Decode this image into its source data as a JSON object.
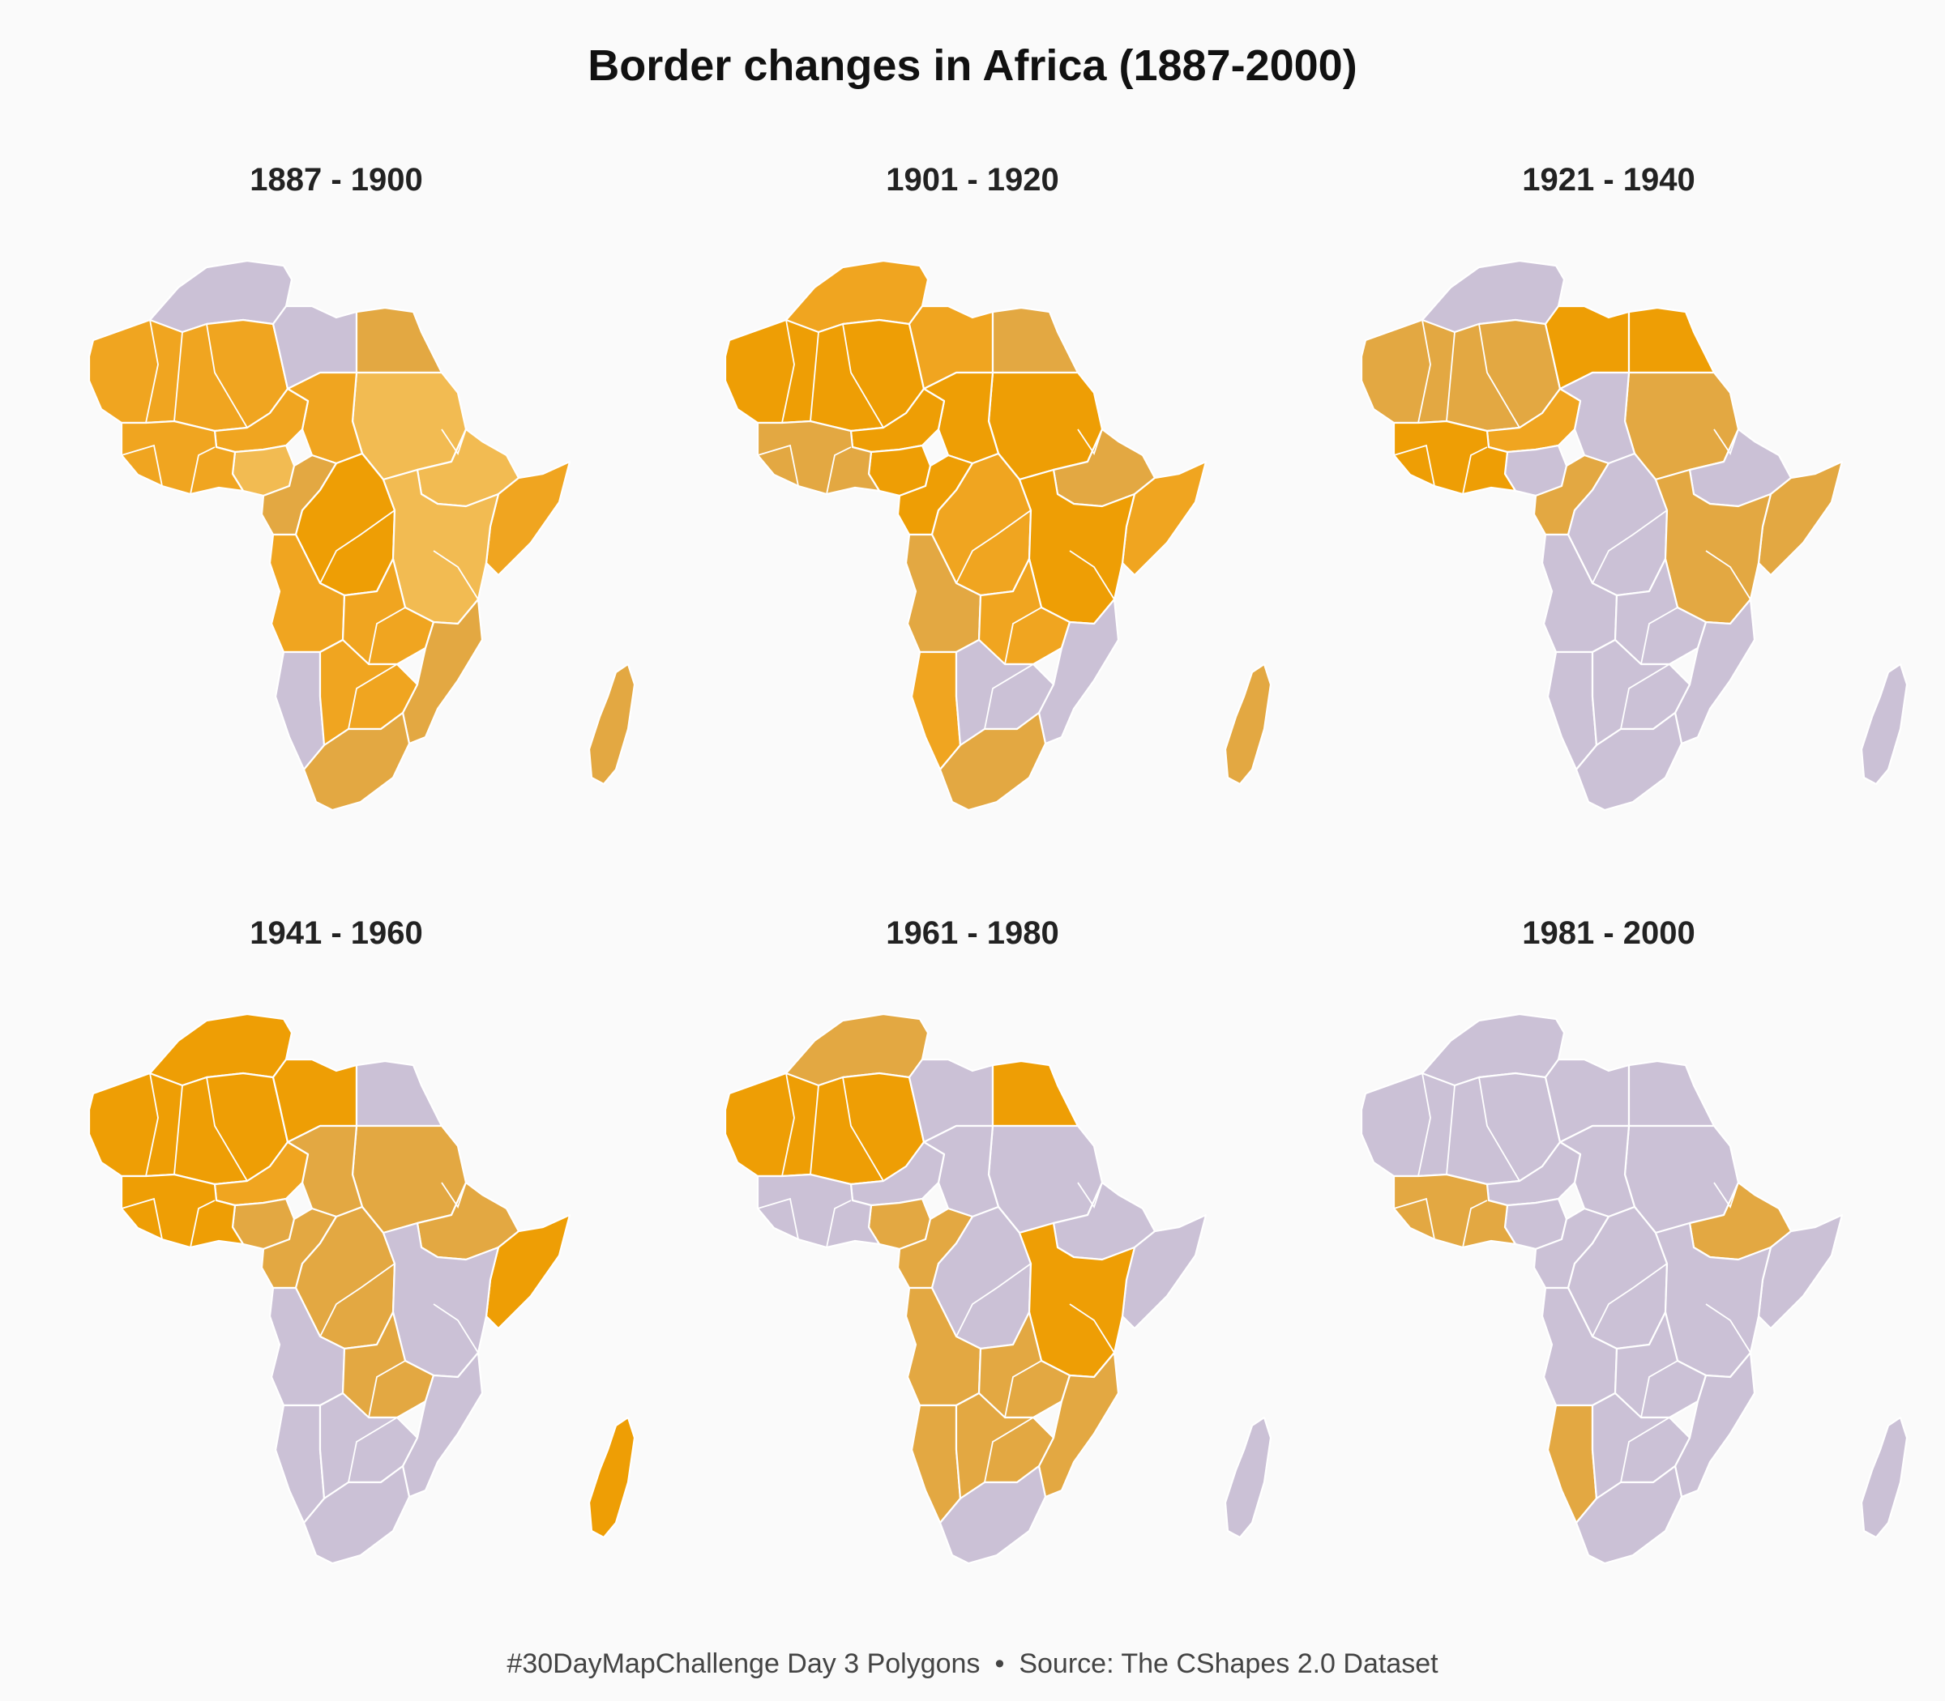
{
  "title": "Border changes in Africa (1887-2000)",
  "caption": {
    "challenge": "#30DayMapChallenge Day 3 Polygons",
    "separator": "•",
    "source": "Source: The CShapes 2.0 Dataset"
  },
  "colors": {
    "background": "#fafafa",
    "unchanged": "#cbc1d6",
    "changed_dark": "#ee9e05",
    "changed_mid": "#f0a520",
    "changed_light": "#f2bb52",
    "changed_muted": "#e3a842",
    "border": "#ffffff"
  },
  "panels": [
    {
      "label": "1887 - 1900",
      "regions": {
        "maghreb": "unchanged",
        "sahara_west": "changed_mid",
        "libya": "unchanged",
        "egypt": "changed_muted",
        "sudan": "changed_light",
        "chad": "changed_mid",
        "niger": "changed_mid",
        "nigeria": "changed_light",
        "guinea_coast": "changed_mid",
        "horn": "changed_light",
        "somalia": "changed_mid",
        "cameroon": "changed_muted",
        "congo": "changed_dark",
        "east_africa": "changed_light",
        "angola": "changed_mid",
        "zambia": "changed_mid",
        "mozambique": "changed_muted",
        "namibia": "unchanged",
        "botswana": "changed_mid",
        "south_africa": "changed_muted",
        "madagascar": "changed_muted"
      }
    },
    {
      "label": "1901 - 1920",
      "regions": {
        "maghreb": "changed_mid",
        "sahara_west": "changed_dark",
        "libya": "changed_mid",
        "egypt": "changed_muted",
        "sudan": "changed_dark",
        "chad": "changed_dark",
        "niger": "changed_dark",
        "nigeria": "changed_dark",
        "guinea_coast": "changed_muted",
        "horn": "changed_muted",
        "somalia": "changed_mid",
        "cameroon": "changed_dark",
        "congo": "changed_mid",
        "east_africa": "changed_dark",
        "angola": "changed_muted",
        "zambia": "changed_mid",
        "mozambique": "unchanged",
        "namibia": "changed_mid",
        "botswana": "unchanged",
        "south_africa": "changed_muted",
        "madagascar": "changed_muted"
      }
    },
    {
      "label": "1921 - 1940",
      "regions": {
        "maghreb": "unchanged",
        "sahara_west": "changed_muted",
        "libya": "changed_dark",
        "egypt": "changed_dark",
        "sudan": "changed_muted",
        "chad": "unchanged",
        "niger": "changed_mid",
        "nigeria": "unchanged",
        "guinea_coast": "changed_dark",
        "horn": "unchanged",
        "somalia": "changed_muted",
        "cameroon": "changed_muted",
        "congo": "unchanged",
        "east_africa": "changed_muted",
        "angola": "unchanged",
        "zambia": "unchanged",
        "mozambique": "unchanged",
        "namibia": "unchanged",
        "botswana": "unchanged",
        "south_africa": "unchanged",
        "madagascar": "unchanged"
      }
    },
    {
      "label": "1941 - 1960",
      "regions": {
        "maghreb": "changed_dark",
        "sahara_west": "changed_dark",
        "libya": "changed_dark",
        "egypt": "unchanged",
        "sudan": "changed_muted",
        "chad": "changed_muted",
        "niger": "changed_mid",
        "nigeria": "changed_muted",
        "guinea_coast": "changed_dark",
        "horn": "changed_muted",
        "somalia": "changed_dark",
        "cameroon": "changed_muted",
        "congo": "changed_muted",
        "east_africa": "unchanged",
        "angola": "unchanged",
        "zambia": "changed_muted",
        "mozambique": "unchanged",
        "namibia": "unchanged",
        "botswana": "unchanged",
        "south_africa": "unchanged",
        "madagascar": "changed_dark"
      }
    },
    {
      "label": "1961 - 1980",
      "regions": {
        "maghreb": "changed_muted",
        "sahara_west": "changed_dark",
        "libya": "unchanged",
        "egypt": "changed_dark",
        "sudan": "unchanged",
        "chad": "unchanged",
        "niger": "unchanged",
        "nigeria": "changed_muted",
        "guinea_coast": "unchanged",
        "horn": "unchanged",
        "somalia": "unchanged",
        "cameroon": "changed_muted",
        "congo": "unchanged",
        "east_africa": "changed_dark",
        "angola": "changed_muted",
        "zambia": "changed_muted",
        "mozambique": "changed_muted",
        "namibia": "changed_muted",
        "botswana": "changed_muted",
        "south_africa": "unchanged",
        "madagascar": "unchanged"
      }
    },
    {
      "label": "1981 - 2000",
      "regions": {
        "maghreb": "unchanged",
        "sahara_west": "unchanged",
        "libya": "unchanged",
        "egypt": "unchanged",
        "sudan": "unchanged",
        "chad": "unchanged",
        "niger": "unchanged",
        "nigeria": "unchanged",
        "guinea_coast": "changed_muted",
        "horn": "changed_muted",
        "somalia": "unchanged",
        "cameroon": "unchanged",
        "congo": "unchanged",
        "east_africa": "unchanged",
        "angola": "unchanged",
        "zambia": "unchanged",
        "mozambique": "unchanged",
        "namibia": "changed_muted",
        "botswana": "unchanged",
        "south_africa": "unchanged",
        "madagascar": "unchanged"
      }
    }
  ]
}
